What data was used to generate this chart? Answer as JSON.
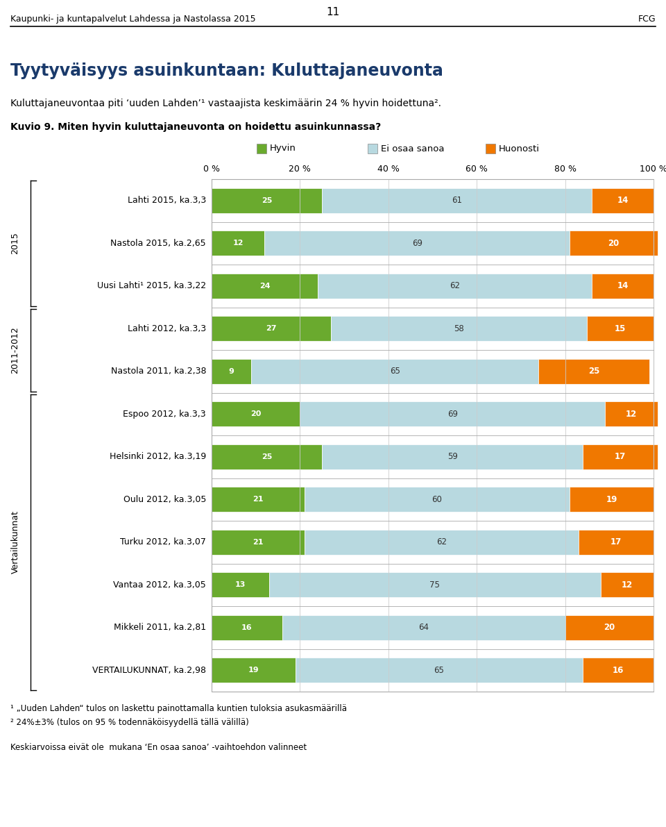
{
  "page_number": "11",
  "header_left": "Kaupunki- ja kuntapalvelut Lahdessa ja Nastolassa 2015",
  "header_right": "FCG",
  "title": "Tyytyväisyys asuinkuntaan: Kuluttajaneuvonta",
  "subtitle": "Kuluttajaneuvontaa piti ‘uuden Lahden’¹ vastaajista keskimäärin 24 % hyvin hoidettuna².",
  "kuvio_label": "Kuvio 9. Miten hyvin kuluttajaneuvonta on hoidettu asuinkunnassa?",
  "legend_items": [
    "Hyvin",
    "Ei osaa sanoa",
    "Huonosti"
  ],
  "legend_colors": [
    "#6aaa2e",
    "#b8d9e0",
    "#f07800"
  ],
  "bars": [
    {
      "label": "Lahti 2015, ka.3,3",
      "hyvin": 25,
      "ei": 61,
      "huonosti": 14
    },
    {
      "label": "Nastola 2015, ka.2,65",
      "hyvin": 12,
      "ei": 69,
      "huonosti": 20
    },
    {
      "label": "Uusi Lahti¹ 2015, ka.3,22",
      "hyvin": 24,
      "ei": 62,
      "huonosti": 14
    },
    {
      "label": "Lahti 2012, ka.3,3",
      "hyvin": 27,
      "ei": 58,
      "huonosti": 15
    },
    {
      "label": "Nastola 2011, ka.2,38",
      "hyvin": 9,
      "ei": 65,
      "huonosti": 25
    },
    {
      "label": "Espoo 2012, ka.3,3",
      "hyvin": 20,
      "ei": 69,
      "huonosti": 12
    },
    {
      "label": "Helsinki 2012, ka.3,19",
      "hyvin": 25,
      "ei": 59,
      "huonosti": 17
    },
    {
      "label": "Oulu 2012, ka.3,05",
      "hyvin": 21,
      "ei": 60,
      "huonosti": 19
    },
    {
      "label": "Turku 2012, ka.3,07",
      "hyvin": 21,
      "ei": 62,
      "huonosti": 17
    },
    {
      "label": "Vantaa 2012, ka.3,05",
      "hyvin": 13,
      "ei": 75,
      "huonosti": 12
    },
    {
      "label": "Mikkeli 2011, ka.2,81",
      "hyvin": 16,
      "ei": 64,
      "huonosti": 20
    },
    {
      "label": "VERTAILUKUNNAT, ka.2,98",
      "hyvin": 19,
      "ei": 65,
      "huonosti": 16
    }
  ],
  "group_labels": [
    {
      "text": "2015",
      "rows": [
        0,
        1,
        2
      ]
    },
    {
      "text": "2011-2012",
      "rows": [
        3,
        4
      ]
    },
    {
      "text": "Vertailukunnat",
      "rows": [
        5,
        6,
        7,
        8,
        9,
        10,
        11
      ]
    }
  ],
  "color_hyvin": "#6aaa2e",
  "color_ei": "#b8d9e0",
  "color_huonosti": "#f07800",
  "footnote1": "¹ „Uuden Lahden“ tulos on laskettu painottamalla kuntien tuloksia asukasmäärillä",
  "footnote2": "² 24%±3% (tulos on 95 % todennäköisyydellä tällä välillä)",
  "footnote3": "Keskiarvoissa eivät ole  mukana ‘En osaa sanoa’ -vaihtoehdon valinneet"
}
